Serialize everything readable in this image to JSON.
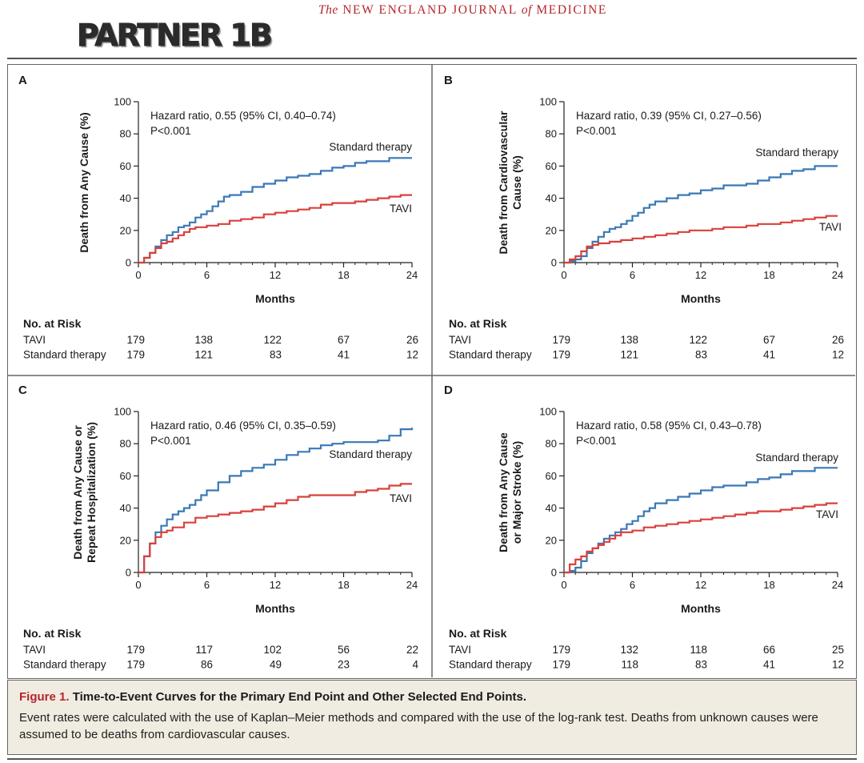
{
  "header": {
    "journal_prefix": "The",
    "journal_name": "NEW ENGLAND JOURNAL",
    "journal_of": "of",
    "journal_suffix": "MEDICINE",
    "logo_text": "PARTNER 1B"
  },
  "colors": {
    "standard": "#3a78b5",
    "tavi": "#d8403b",
    "caption_bg": "#f1ece2",
    "accent": "#b3262b"
  },
  "chart_data": [
    {
      "type": "line",
      "panel_label": "A",
      "ylabel_lines": [
        "Death from Any Cause (%)"
      ],
      "xlabel": "Months",
      "xlim": [
        0,
        24
      ],
      "ylim": [
        0,
        100
      ],
      "xticks": [
        0,
        6,
        12,
        18,
        24
      ],
      "yticks": [
        0,
        20,
        40,
        60,
        80,
        100
      ],
      "annotation": "Hazard ratio, 0.55 (95% CI, 0.40–0.74)",
      "pvalue": "P<0.001",
      "series": [
        {
          "name": "Standard therapy",
          "color": "#3a78b5",
          "x": [
            0,
            0.5,
            1,
            1.5,
            2,
            2.5,
            3,
            3.5,
            4,
            4.5,
            5,
            5.5,
            6,
            6.5,
            7,
            7.5,
            8,
            9,
            10,
            11,
            12,
            13,
            14,
            15,
            16,
            17,
            18,
            19,
            20,
            21,
            22,
            24
          ],
          "y": [
            0,
            3,
            6,
            10,
            14,
            17,
            19,
            22,
            23,
            25,
            28,
            30,
            32,
            35,
            38,
            41,
            42,
            44,
            47,
            49,
            51,
            53,
            54,
            55,
            57,
            59,
            60,
            62,
            63,
            63,
            65,
            65
          ]
        },
        {
          "name": "TAVI",
          "color": "#d8403b",
          "x": [
            0,
            0.5,
            1,
            1.5,
            2,
            2.5,
            3,
            3.5,
            4,
            4.5,
            5,
            6,
            7,
            8,
            9,
            10,
            11,
            12,
            13,
            14,
            15,
            16,
            17,
            18,
            19,
            20,
            21,
            22,
            23,
            24
          ],
          "y": [
            0,
            3,
            6,
            9,
            12,
            13,
            15,
            17,
            19,
            21,
            22,
            23,
            24,
            26,
            27,
            28,
            30,
            31,
            32,
            33,
            34,
            36,
            37,
            37,
            38,
            39,
            40,
            41,
            42,
            42
          ]
        }
      ],
      "series_labels": [
        "Standard therapy",
        "TAVI"
      ],
      "risk": {
        "title": "No. at Risk",
        "rows": [
          {
            "label": "TAVI",
            "values": [
              "179",
              "138",
              "122",
              "67",
              "26"
            ]
          },
          {
            "label": "Standard therapy",
            "values": [
              "179",
              "121",
              "83",
              "41",
              "12"
            ]
          }
        ]
      }
    },
    {
      "type": "line",
      "panel_label": "B",
      "ylabel_lines": [
        "Death from Cardiovascular",
        "Cause (%)"
      ],
      "xlabel": "Months",
      "xlim": [
        0,
        24
      ],
      "ylim": [
        0,
        100
      ],
      "xticks": [
        0,
        6,
        12,
        18,
        24
      ],
      "yticks": [
        0,
        20,
        40,
        60,
        80,
        100
      ],
      "annotation": "Hazard ratio, 0.39 (95% CI, 0.27–0.56)",
      "pvalue": "P<0.001",
      "series": [
        {
          "name": "Standard therapy",
          "color": "#3a78b5",
          "x": [
            0,
            0.5,
            1,
            1.5,
            2,
            2.5,
            3,
            3.5,
            4,
            4.5,
            5,
            5.5,
            6,
            6.5,
            7,
            7.5,
            8,
            9,
            10,
            11,
            12,
            13,
            14,
            15,
            16,
            17,
            18,
            19,
            20,
            21,
            22,
            24
          ],
          "y": [
            0,
            1,
            2,
            4,
            9,
            13,
            16,
            19,
            21,
            22,
            24,
            26,
            29,
            31,
            34,
            36,
            38,
            40,
            42,
            43,
            45,
            46,
            48,
            48,
            49,
            51,
            53,
            55,
            57,
            58,
            60,
            60
          ]
        },
        {
          "name": "TAVI",
          "color": "#d8403b",
          "x": [
            0,
            0.5,
            1,
            1.5,
            2,
            2.5,
            3,
            4,
            5,
            6,
            7,
            8,
            9,
            10,
            11,
            12,
            13,
            14,
            15,
            16,
            17,
            18,
            19,
            20,
            21,
            22,
            23,
            24
          ],
          "y": [
            0,
            2,
            4,
            7,
            10,
            11,
            12,
            13,
            14,
            15,
            16,
            17,
            18,
            19,
            20,
            20,
            21,
            22,
            22,
            23,
            24,
            24,
            25,
            26,
            27,
            28,
            29,
            29
          ]
        }
      ],
      "series_labels": [
        "Standard therapy",
        "TAVI"
      ],
      "risk": {
        "title": "No. at Risk",
        "rows": [
          {
            "label": "TAVI",
            "values": [
              "179",
              "138",
              "122",
              "67",
              "26"
            ]
          },
          {
            "label": "Standard therapy",
            "values": [
              "179",
              "121",
              "83",
              "41",
              "12"
            ]
          }
        ]
      }
    },
    {
      "type": "line",
      "panel_label": "C",
      "ylabel_lines": [
        "Death from Any Cause or",
        "Repeat Hospitalization (%)"
      ],
      "xlabel": "Months",
      "xlim": [
        0,
        24
      ],
      "ylim": [
        0,
        100
      ],
      "xticks": [
        0,
        6,
        12,
        18,
        24
      ],
      "yticks": [
        0,
        20,
        40,
        60,
        80,
        100
      ],
      "annotation": "Hazard ratio, 0.46 (95% CI, 0.35–0.59)",
      "pvalue": "P<0.001",
      "series": [
        {
          "name": "Standard therapy",
          "color": "#3a78b5",
          "x": [
            0,
            0.5,
            1,
            1.5,
            2,
            2.5,
            3,
            3.5,
            4,
            4.5,
            5,
            5.5,
            6,
            7,
            8,
            9,
            10,
            11,
            12,
            13,
            14,
            15,
            16,
            17,
            18,
            19,
            20,
            21,
            22,
            23,
            24
          ],
          "y": [
            0,
            10,
            18,
            25,
            29,
            33,
            36,
            38,
            40,
            42,
            45,
            48,
            51,
            56,
            60,
            63,
            65,
            67,
            70,
            73,
            75,
            77,
            79,
            80,
            81,
            81,
            81,
            82,
            85,
            89,
            90
          ]
        },
        {
          "name": "TAVI",
          "color": "#d8403b",
          "x": [
            0,
            0.5,
            1,
            1.5,
            2,
            2.5,
            3,
            4,
            5,
            6,
            7,
            8,
            9,
            10,
            11,
            12,
            13,
            14,
            15,
            16,
            17,
            18,
            19,
            20,
            21,
            22,
            23,
            24
          ],
          "y": [
            0,
            10,
            18,
            22,
            25,
            26,
            28,
            31,
            34,
            35,
            36,
            37,
            38,
            39,
            41,
            43,
            45,
            47,
            48,
            48,
            48,
            48,
            50,
            51,
            52,
            54,
            55,
            55
          ]
        }
      ],
      "series_labels": [
        "Standard therapy",
        "TAVI"
      ],
      "risk": {
        "title": "No. at Risk",
        "rows": [
          {
            "label": "TAVI",
            "values": [
              "179",
              "117",
              "102",
              "56",
              "22"
            ]
          },
          {
            "label": "Standard therapy",
            "values": [
              "179",
              "86",
              "49",
              "23",
              "4"
            ]
          }
        ]
      }
    },
    {
      "type": "line",
      "panel_label": "D",
      "ylabel_lines": [
        "Death from Any Cause",
        "or Major Stroke (%)"
      ],
      "xlabel": "Months",
      "xlim": [
        0,
        24
      ],
      "ylim": [
        0,
        100
      ],
      "xticks": [
        0,
        6,
        12,
        18,
        24
      ],
      "yticks": [
        0,
        20,
        40,
        60,
        80,
        100
      ],
      "annotation": "Hazard ratio, 0.58 (95% CI, 0.43–0.78)",
      "pvalue": "P<0.001",
      "series": [
        {
          "name": "Standard therapy",
          "color": "#3a78b5",
          "x": [
            0,
            0.5,
            1,
            1.5,
            2,
            2.5,
            3,
            3.5,
            4,
            4.5,
            5,
            5.5,
            6,
            6.5,
            7,
            7.5,
            8,
            9,
            10,
            11,
            12,
            13,
            14,
            15,
            16,
            17,
            18,
            19,
            20,
            21,
            22,
            24
          ],
          "y": [
            0,
            1,
            3,
            7,
            12,
            15,
            18,
            21,
            23,
            25,
            27,
            30,
            32,
            35,
            38,
            40,
            43,
            45,
            47,
            49,
            51,
            53,
            54,
            54,
            56,
            58,
            59,
            61,
            63,
            63,
            65,
            65
          ]
        },
        {
          "name": "TAVI",
          "color": "#d8403b",
          "x": [
            0,
            0.5,
            1,
            1.5,
            2,
            2.5,
            3,
            3.5,
            4,
            4.5,
            5,
            6,
            7,
            8,
            9,
            10,
            11,
            12,
            13,
            14,
            15,
            16,
            17,
            18,
            19,
            20,
            21,
            22,
            23,
            24
          ],
          "y": [
            0,
            5,
            8,
            10,
            13,
            15,
            17,
            19,
            21,
            23,
            25,
            26,
            28,
            29,
            30,
            31,
            32,
            33,
            34,
            35,
            36,
            37,
            38,
            38,
            39,
            40,
            41,
            42,
            43,
            43
          ]
        }
      ],
      "series_labels": [
        "Standard therapy",
        "TAVI"
      ],
      "risk": {
        "title": "No. at Risk",
        "rows": [
          {
            "label": "TAVI",
            "values": [
              "179",
              "132",
              "118",
              "66",
              "25"
            ]
          },
          {
            "label": "Standard therapy",
            "values": [
              "179",
              "118",
              "83",
              "41",
              "12"
            ]
          }
        ]
      }
    }
  ],
  "caption": {
    "figure_label": "Figure 1.",
    "title": "Time-to-Event Curves for the Primary End Point and Other Selected End Points.",
    "text": "Event rates were calculated with the use of Kaplan–Meier methods and compared with the use of the log-rank test. Deaths from unknown causes were assumed to be deaths from cardiovascular causes."
  }
}
